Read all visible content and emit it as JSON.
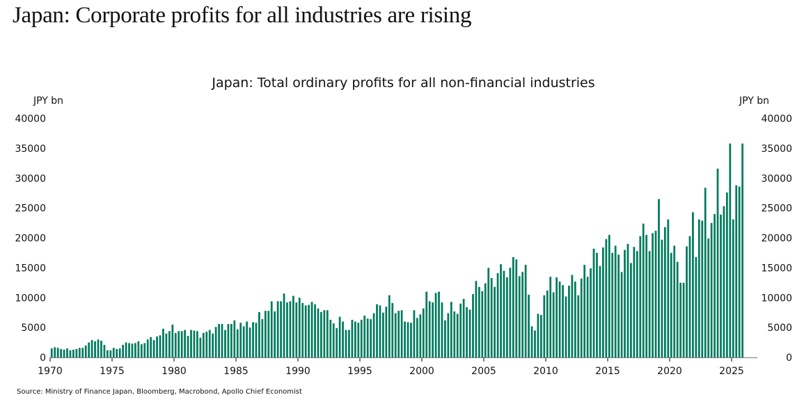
{
  "headline": "Japan: Corporate profits for all industries are rising",
  "source": "Source: Ministry of Finance Japan, Bloomberg, Macrobond, Apollo Chief Economist",
  "chart_data": {
    "type": "bar",
    "title": "Japan: Total ordinary profits for all non-financial industries",
    "ylabel_left": "JPY bn",
    "ylabel_right": "JPY bn",
    "xlabel": "",
    "frequency": "quarterly",
    "start": "1970 Q1",
    "ylim": [
      0,
      40000
    ],
    "yticks": [
      0,
      5000,
      10000,
      15000,
      20000,
      25000,
      30000,
      35000,
      40000
    ],
    "xticks": [
      1970,
      1975,
      1980,
      1985,
      1990,
      1995,
      2000,
      2005,
      2010,
      2015,
      2020,
      2025
    ],
    "xlim": [
      1970,
      2027
    ],
    "grid": false,
    "legend": "none",
    "bar_color": "#007a5e",
    "series": [
      {
        "name": "Total ordinary profits",
        "values": [
          1500,
          1700,
          1600,
          1400,
          1300,
          1500,
          1200,
          1300,
          1400,
          1600,
          1600,
          2000,
          2500,
          2900,
          2700,
          3000,
          2800,
          2100,
          1200,
          1200,
          1600,
          1400,
          1500,
          2100,
          2500,
          2400,
          2300,
          2400,
          2700,
          2200,
          2400,
          3000,
          3400,
          2900,
          3500,
          3700,
          4800,
          4000,
          4400,
          5500,
          4100,
          4400,
          4400,
          4600,
          3600,
          4600,
          4500,
          4400,
          3300,
          4100,
          4300,
          4600,
          4000,
          5100,
          5600,
          5600,
          4600,
          5600,
          5600,
          6200,
          4700,
          5800,
          5200,
          6000,
          5000,
          5900,
          5800,
          7600,
          6400,
          7800,
          7800,
          9400,
          7700,
          9400,
          9400,
          10700,
          9200,
          9400,
          10300,
          9200,
          10000,
          9100,
          8700,
          8800,
          9300,
          8900,
          8200,
          7600,
          7900,
          7900,
          6300,
          5700,
          4900,
          6800,
          6000,
          4600,
          4600,
          6300,
          6000,
          5800,
          6300,
          7000,
          6500,
          6400,
          7400,
          8900,
          8700,
          7500,
          8500,
          10400,
          9100,
          7400,
          7800,
          7900,
          6000,
          5900,
          5800,
          7900,
          6600,
          7200,
          8200,
          11000,
          9400,
          9200,
          10800,
          11000,
          9200,
          6200,
          7400,
          9300,
          7700,
          7300,
          9000,
          9800,
          8400,
          8000,
          10600,
          12800,
          11800,
          11100,
          12400,
          15000,
          13300,
          11800,
          14100,
          15600,
          14500,
          13400,
          15000,
          16800,
          16400,
          13600,
          14300,
          15500,
          10500,
          5200,
          4500,
          7300,
          7100,
          10400,
          11200,
          13500,
          10900,
          13400,
          12700,
          12100,
          10200,
          12000,
          13800,
          12700,
          10400,
          13200,
          15500,
          13500,
          14900,
          18200,
          17500,
          15300,
          18400,
          19800,
          20500,
          17500,
          18700,
          17200,
          14300,
          18000,
          19000,
          15800,
          18500,
          17800,
          20300,
          22400,
          20500,
          17800,
          20800,
          21200,
          26500,
          19700,
          21800,
          23100,
          17500,
          18700,
          16000,
          12500,
          12500,
          18600,
          20300,
          24300,
          16800,
          23100,
          22900,
          28400,
          19900,
          22500,
          24000,
          31600,
          23900,
          25300,
          27600,
          35800,
          23100,
          28800,
          28600,
          35800
        ]
      }
    ]
  }
}
